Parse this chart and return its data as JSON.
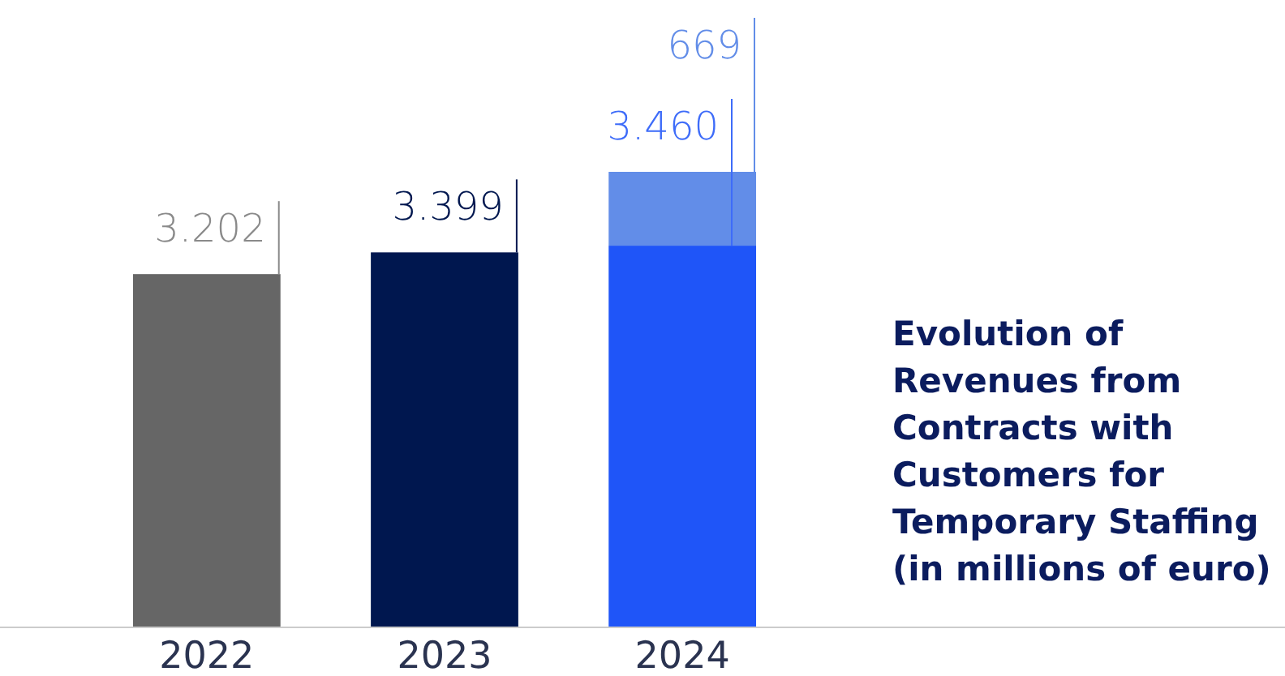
{
  "chart_data": {
    "type": "bar",
    "title": "Evolution of Revenues from Contracts with Customers for Temporary Staffing (in millions of euro)",
    "categories": [
      "2022",
      "2023",
      "2024"
    ],
    "stacked": true,
    "series": [
      {
        "values": [
          3202,
          3399,
          3460
        ],
        "colors": [
          "#666666",
          "#00174f",
          "#1f55f8"
        ],
        "value_labels": [
          "3.202",
          "3.399",
          "3.460"
        ]
      },
      {
        "values": [
          null,
          null,
          669
        ],
        "colors": [
          null,
          null,
          "#628de8"
        ],
        "value_labels": [
          null,
          null,
          "669"
        ]
      }
    ]
  }
}
